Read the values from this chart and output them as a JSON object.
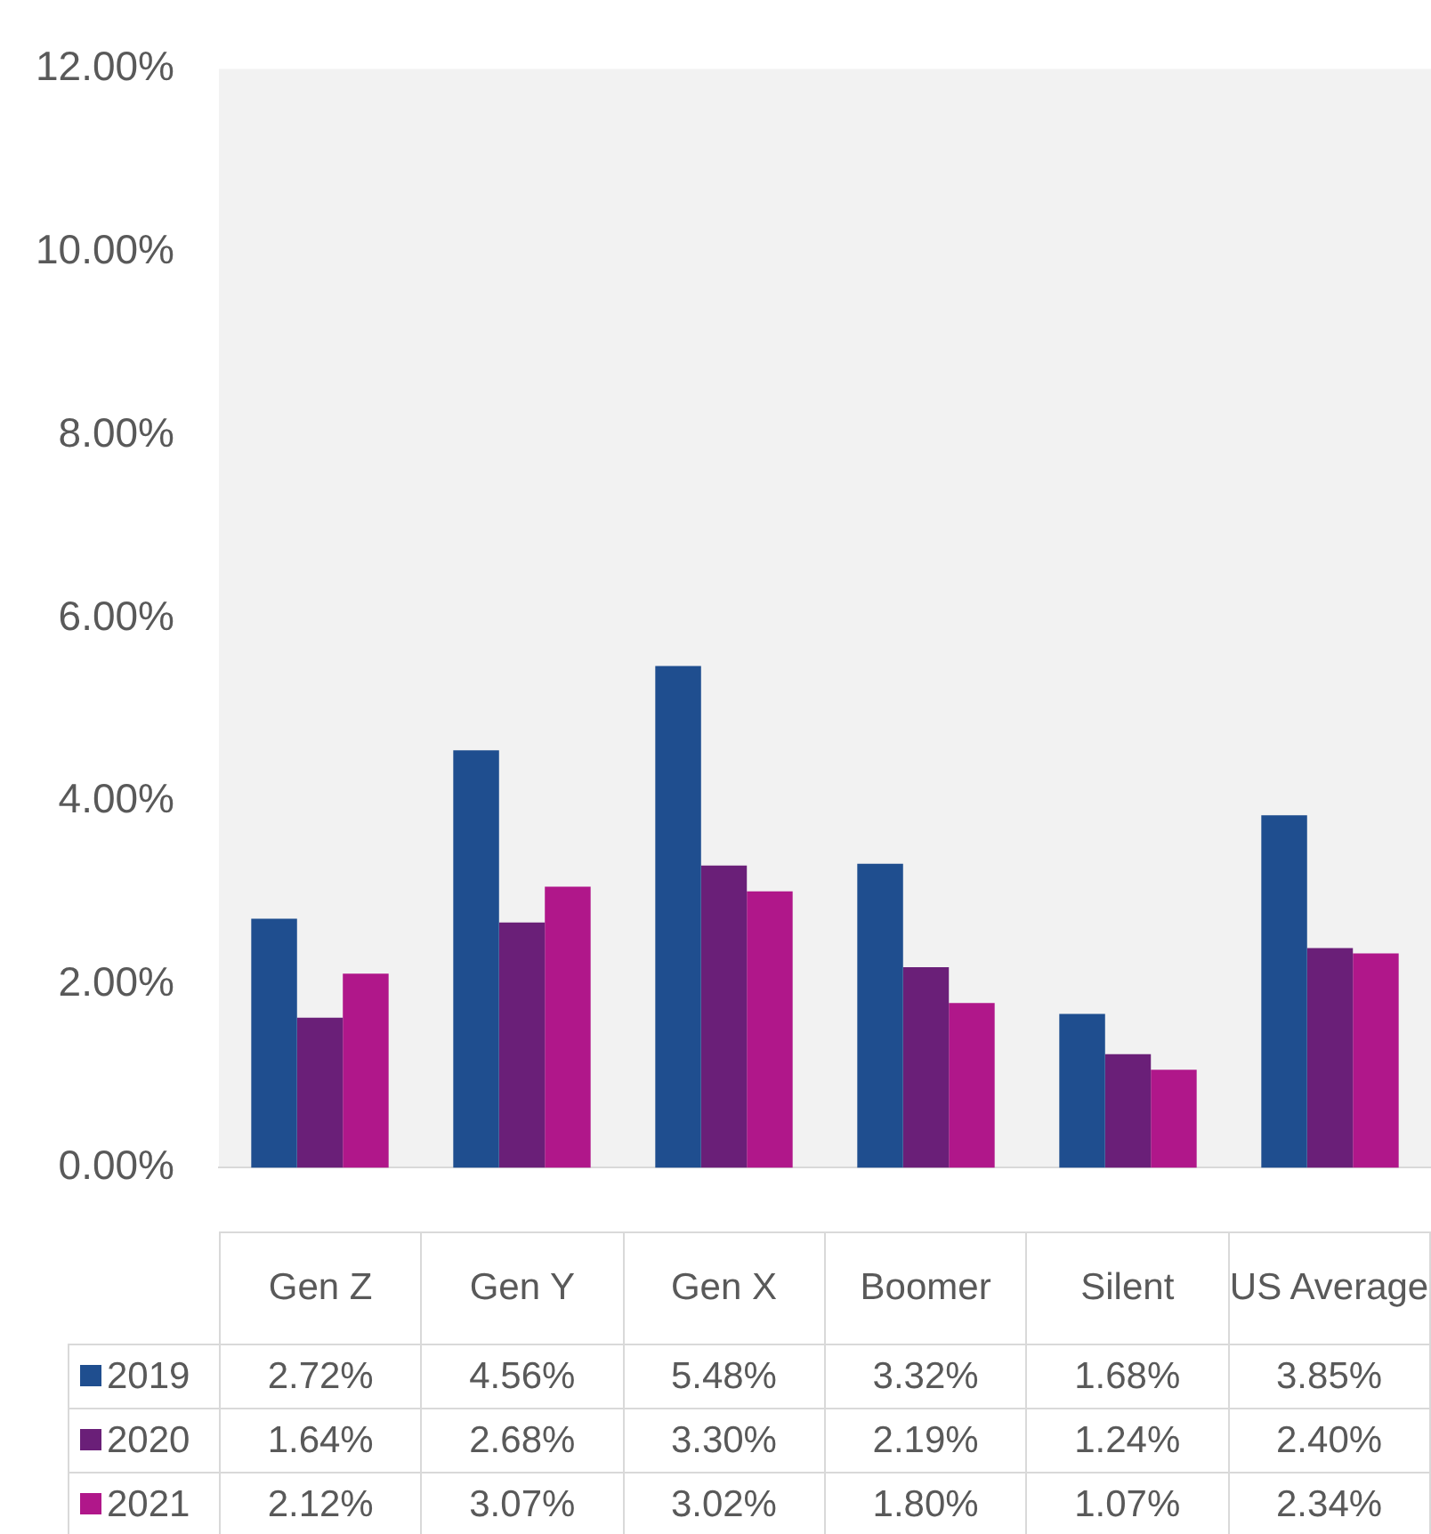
{
  "chart_data": {
    "type": "bar",
    "categories": [
      "Gen Z",
      "Gen Y",
      "Gen X",
      "Boomer",
      "Silent",
      "US Average"
    ],
    "series": [
      {
        "name": "2019",
        "color": "#1f4e8f",
        "values": [
          2.72,
          4.56,
          5.48,
          3.32,
          1.68,
          3.85
        ],
        "value_labels": [
          "2.72%",
          "4.56%",
          "5.48%",
          "3.32%",
          "1.68%",
          "3.85%"
        ]
      },
      {
        "name": "2020",
        "color": "#6a1f78",
        "values": [
          1.64,
          2.68,
          3.3,
          2.19,
          1.24,
          2.4
        ],
        "value_labels": [
          "1.64%",
          "2.68%",
          "3.30%",
          "2.19%",
          "1.24%",
          "2.40%"
        ]
      },
      {
        "name": "2021",
        "color": "#b0178a",
        "values": [
          2.12,
          3.07,
          3.02,
          1.8,
          1.07,
          2.34
        ],
        "value_labels": [
          "2.12%",
          "3.07%",
          "3.02%",
          "1.80%",
          "1.07%",
          "2.34%"
        ]
      }
    ],
    "ylim": [
      0,
      12
    ],
    "yticks": [
      {
        "value": 0,
        "label": "0.00%"
      },
      {
        "value": 2,
        "label": "2.00%"
      },
      {
        "value": 4,
        "label": "4.00%"
      },
      {
        "value": 6,
        "label": "6.00%"
      },
      {
        "value": 8,
        "label": "8.00%"
      },
      {
        "value": 10,
        "label": "10.00%"
      },
      {
        "value": 12,
        "label": "12.00%"
      }
    ],
    "grid": false,
    "legend": "bottom"
  }
}
